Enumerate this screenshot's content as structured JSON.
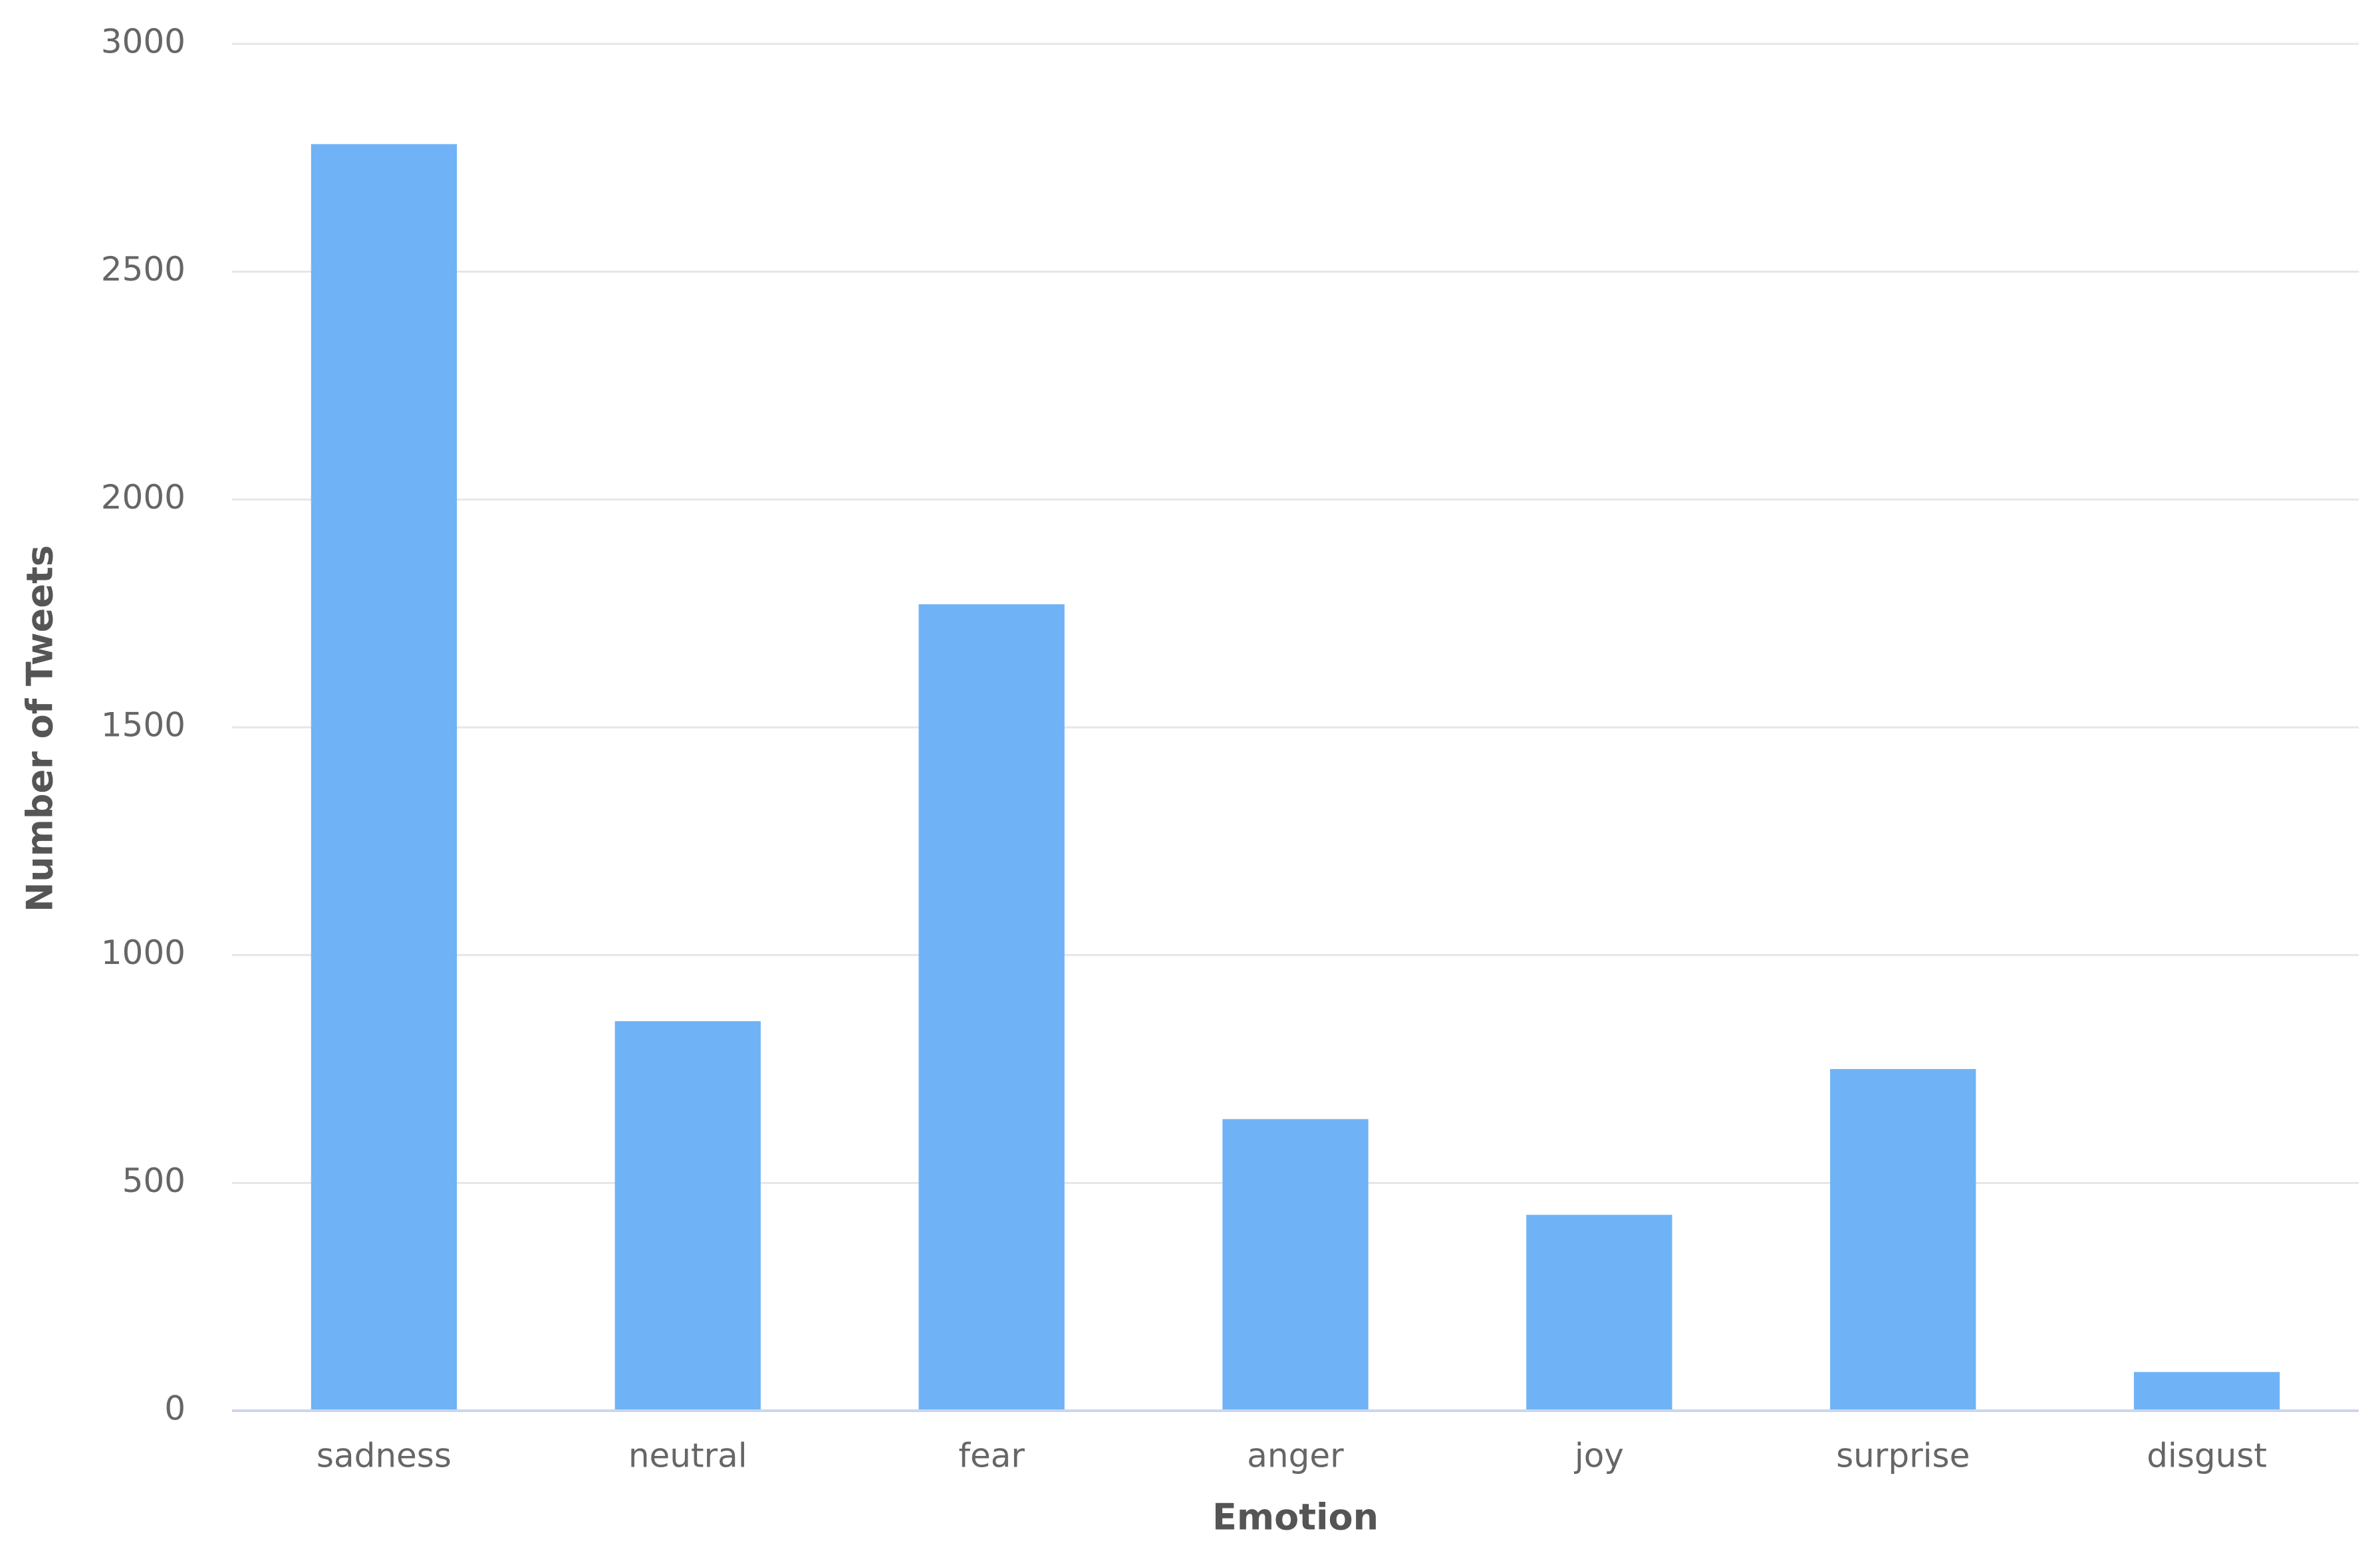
{
  "chart_data": {
    "type": "bar",
    "x_label": "Emotion",
    "y_label": "Number of Tweets",
    "categories": [
      "sadness",
      "neutral",
      "fear",
      "anger",
      "joy",
      "surprise",
      "disgust"
    ],
    "values": [
      2780,
      855,
      1770,
      640,
      430,
      750,
      85
    ],
    "color": "#6fb3f6",
    "ylim": [
      0,
      3000
    ],
    "yticks": [
      0,
      500,
      1000,
      1500,
      2000,
      2500,
      3000
    ],
    "grid": true
  }
}
